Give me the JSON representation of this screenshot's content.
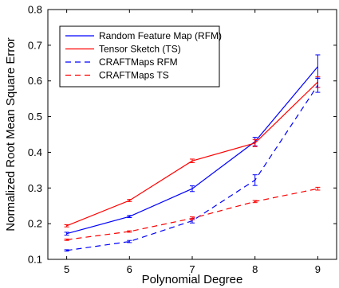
{
  "chart_data": {
    "type": "line",
    "xlabel": "Polynomial Degree",
    "ylabel": "Normalized Root Mean Square Error",
    "xlim": [
      4.7,
      9.3
    ],
    "ylim": [
      0.1,
      0.8
    ],
    "x": [
      5,
      6,
      7,
      8,
      9
    ],
    "xticks": [
      "5",
      "6",
      "7",
      "8",
      "9"
    ],
    "yticks": [
      "0.1",
      "0.2",
      "0.3",
      "0.4",
      "0.5",
      "0.6",
      "0.7",
      "0.8"
    ],
    "legend_position": "top-left",
    "grid": false,
    "series": [
      {
        "name": "Random Feature Map (RFM)",
        "color": "#0000ff",
        "style": "solid",
        "values": [
          0.172,
          0.22,
          0.298,
          0.43,
          0.64
        ],
        "errors": [
          0.004,
          0.003,
          0.008,
          0.012,
          0.033
        ]
      },
      {
        "name": "Tensor Sketch (TS)",
        "color": "#ff0000",
        "style": "solid",
        "values": [
          0.194,
          0.265,
          0.376,
          0.426,
          0.597
        ],
        "errors": [
          0.003,
          0.003,
          0.005,
          0.01,
          0.015
        ]
      },
      {
        "name": "CRAFTMaps RFM",
        "color": "#0000ff",
        "style": "dashed",
        "values": [
          0.125,
          0.15,
          0.208,
          0.322,
          0.588
        ],
        "errors": [
          0.002,
          0.003,
          0.006,
          0.015,
          0.02
        ]
      },
      {
        "name": "CRAFTMaps TS",
        "color": "#ff0000",
        "style": "dashed",
        "values": [
          0.155,
          0.178,
          0.215,
          0.262,
          0.298
        ],
        "errors": [
          0.002,
          0.002,
          0.004,
          0.003,
          0.004
        ]
      }
    ]
  }
}
